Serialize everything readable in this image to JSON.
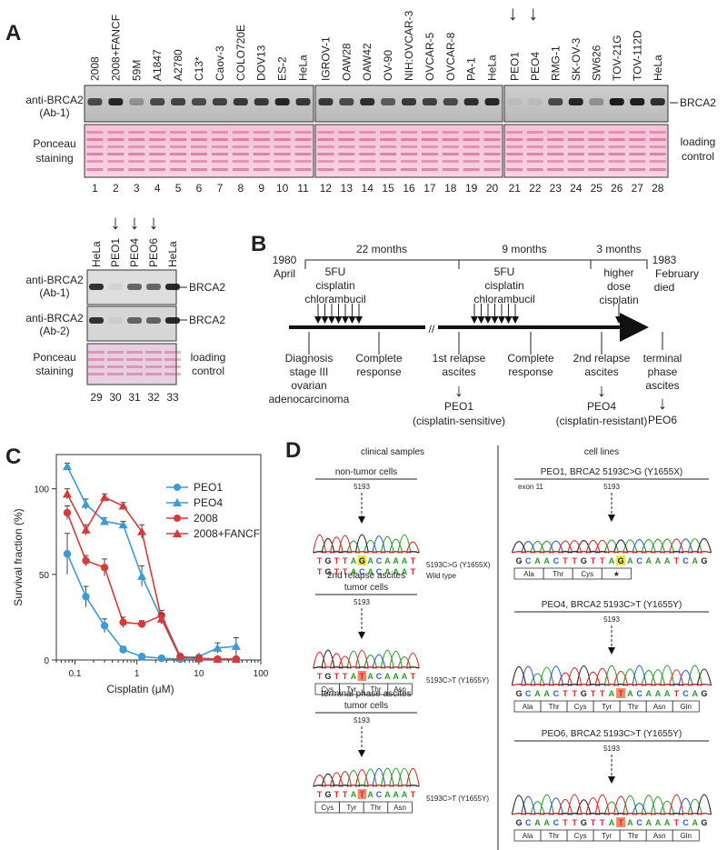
{
  "panelA": {
    "letter": "A",
    "cell_lines_1": [
      "2008",
      "2008+FANCF",
      "59M",
      "A1847",
      "A2780",
      "C13*",
      "Caov-3",
      "COLO720E",
      "DOV13",
      "ES-2",
      "HeLa"
    ],
    "cell_lines_2": [
      "IGROV-1",
      "OAW28",
      "OAW42",
      "OV-90",
      "NIH:OVCAR-3",
      "OVCAR-5",
      "OVCAR-8",
      "PA-1",
      "HeLa"
    ],
    "cell_lines_3": [
      "PEO1",
      "PEO4",
      "RMG-1",
      "SK-OV-3",
      "SW626",
      "TOV-21G",
      "TOV-112D",
      "HeLa"
    ],
    "lanes": [
      "1",
      "2",
      "3",
      "4",
      "5",
      "6",
      "7",
      "8",
      "9",
      "10",
      "11",
      "12",
      "13",
      "14",
      "15",
      "16",
      "17",
      "18",
      "19",
      "20",
      "21",
      "22",
      "23",
      "24",
      "25",
      "26",
      "27",
      "28"
    ],
    "row1_label_a": "anti-BRCA2",
    "row1_label_b": "(Ab-1)",
    "row2_label_a": "Ponceau",
    "row2_label_b": "staining",
    "band_label": "BRCA2",
    "loading_a": "loading",
    "loading_b": "control",
    "arrow_glyph": "↓"
  },
  "panelA2": {
    "cell_lines": [
      "HeLa",
      "PEO1",
      "PEO4",
      "PEO6",
      "HeLa"
    ],
    "lanes": [
      "29",
      "30",
      "31",
      "32",
      "33"
    ],
    "ab1_a": "anti-BRCA2",
    "ab1_b": "(Ab-1)",
    "ab2_a": "anti-BRCA2",
    "ab2_b": "(Ab-2)",
    "ponceau_a": "Ponceau",
    "ponceau_b": "staining",
    "band_label": "BRCA2",
    "loading_a": "loading",
    "loading_b": "control"
  },
  "panelB": {
    "letter": "B",
    "start_year": "1980",
    "start_month": "April",
    "end_year": "1983",
    "end_month": "February",
    "end_note": "died",
    "durations": [
      "22 months",
      "9 months",
      "3 months"
    ],
    "chemo1": [
      "5FU",
      "cisplatin",
      "chlorambucil"
    ],
    "chemo2": [
      "5FU",
      "cisplatin",
      "chlorambucil"
    ],
    "chemo3": [
      "higher",
      "dose",
      "cisplatin"
    ],
    "diagnosis": [
      "Diagnosis",
      "stage III",
      "ovarian",
      "adenocarcinoma"
    ],
    "complete1": [
      "Complete",
      "response"
    ],
    "relapse1": [
      "1st relapse",
      "ascites"
    ],
    "complete2": [
      "Complete",
      "response"
    ],
    "relapse2": [
      "2nd relapse",
      "ascites"
    ],
    "terminal": [
      "terminal",
      "phase",
      "ascites"
    ],
    "peo1": "PEO1",
    "peo1_note": "(cisplatin-sensitive)",
    "peo4": "PEO4",
    "peo4_note": "(cisplatin-resistant)",
    "peo6": "PEO6",
    "break_mark": "//"
  },
  "panelC": {
    "letter": "C",
    "ylabel": "Survival fraction (%)",
    "xlabel": "Cisplatin (μM)",
    "legend": [
      "PEO1",
      "PEO4",
      "2008",
      "2008+FANCF"
    ]
  },
  "chart_data": {
    "type": "line",
    "xlabel": "Cisplatin (μM)",
    "ylabel": "Survival fraction (%)",
    "xscale": "log",
    "xlim": [
      0.05,
      100
    ],
    "ylim": [
      0,
      120
    ],
    "x_ticks": [
      "0.1",
      "1",
      "10",
      "100"
    ],
    "y_ticks": [
      "0",
      "50",
      "100"
    ],
    "legend_position": "top-right",
    "series": [
      {
        "name": "PEO1",
        "color": "#3b9ad8",
        "marker": "circle",
        "x": [
          0.075,
          0.15,
          0.3,
          0.6,
          1.2,
          2.5,
          5,
          10,
          20,
          40
        ],
        "y": [
          62,
          37,
          20,
          6,
          2,
          1,
          0.5,
          0.5,
          0.5,
          0.5
        ],
        "err": [
          12,
          6,
          4,
          2,
          1,
          1,
          0.5,
          0.5,
          0.5,
          0.5
        ]
      },
      {
        "name": "PEO4",
        "color": "#3b9ad8",
        "marker": "triangle",
        "x": [
          0.075,
          0.15,
          0.3,
          0.6,
          1.2,
          2.5,
          5,
          10,
          20,
          40
        ],
        "y": [
          113,
          91,
          81,
          79,
          49,
          24,
          1,
          2,
          7,
          8
        ],
        "err": [
          2,
          3,
          2,
          2,
          6,
          3,
          1,
          1,
          3,
          5
        ]
      },
      {
        "name": "2008",
        "color": "#d83a3a",
        "marker": "circle",
        "x": [
          0.075,
          0.15,
          0.3,
          0.6,
          1.2,
          2.5,
          5,
          10,
          20,
          40
        ],
        "y": [
          86,
          58,
          54,
          22,
          21,
          26,
          2,
          1,
          0.5,
          0.5
        ],
        "err": [
          4,
          3,
          5,
          3,
          2,
          3,
          1,
          1,
          0.5,
          0.5
        ]
      },
      {
        "name": "2008+FANCF",
        "color": "#d83a3a",
        "marker": "triangle",
        "x": [
          0.075,
          0.15,
          0.3,
          0.6,
          1.2,
          2.5,
          5,
          10,
          20,
          40
        ],
        "y": [
          97,
          76,
          95,
          90,
          75,
          24,
          2,
          1,
          0.5,
          0.5
        ],
        "err": [
          3,
          3,
          2,
          2,
          4,
          3,
          1,
          1,
          0.5,
          0.5
        ]
      }
    ]
  },
  "panelD": {
    "letter": "D",
    "clinical_title": "clinical samples",
    "cells_title": "cell lines",
    "clin": [
      {
        "title": "non-tumor cells",
        "pos": "5193",
        "seq1": "TGTTAGACAAAT",
        "seq2": "TGTTACACAAAT",
        "note": "5193C>G (Y1655X)",
        "note2": "Wild type",
        "aa": []
      },
      {
        "title": "2nd relapse ascites",
        "title2": "tumor cells",
        "pos": "5193",
        "seq1": "TGTTATACAAAT",
        "note": "5193C>T (Y1655Y)",
        "aa": [
          "Cys",
          "Tyr",
          "Thr",
          "Asn"
        ]
      },
      {
        "title": "terminal phase ascites",
        "title2": "tumor cells",
        "pos": "5193",
        "seq1": "TGTTATACAAAT",
        "note": "5193C>T (Y1655Y)",
        "aa": [
          "Cys",
          "Tyr",
          "Thr",
          "Asn"
        ]
      }
    ],
    "lines": [
      {
        "title": "PEO1, BRCA2 5193C>G (Y1655X)",
        "exon": "exon 11",
        "pos": "5193",
        "seq1": "GCAACTTGTTAGACAAATCAG",
        "aa": [
          "Ala",
          "Thr",
          "Cys",
          "★"
        ]
      },
      {
        "title": "PEO4, BRCA2 5193C>T (Y1655Y)",
        "pos": "5193",
        "seq1": "GCAACTTGTTATACAAATCAG",
        "aa": [
          "Ala",
          "Thr",
          "Cys",
          "Tyr",
          "Thr",
          "Asn",
          "Gln"
        ]
      },
      {
        "title": "PEO6, BRCA2 5193C>T (Y1655Y)",
        "pos": "5193",
        "seq1": "GCAACTTGTTATACAAATCAG",
        "aa": [
          "Ala",
          "Thr",
          "Cys",
          "Tyr",
          "Thr",
          "Asn",
          "Gln"
        ]
      }
    ]
  }
}
